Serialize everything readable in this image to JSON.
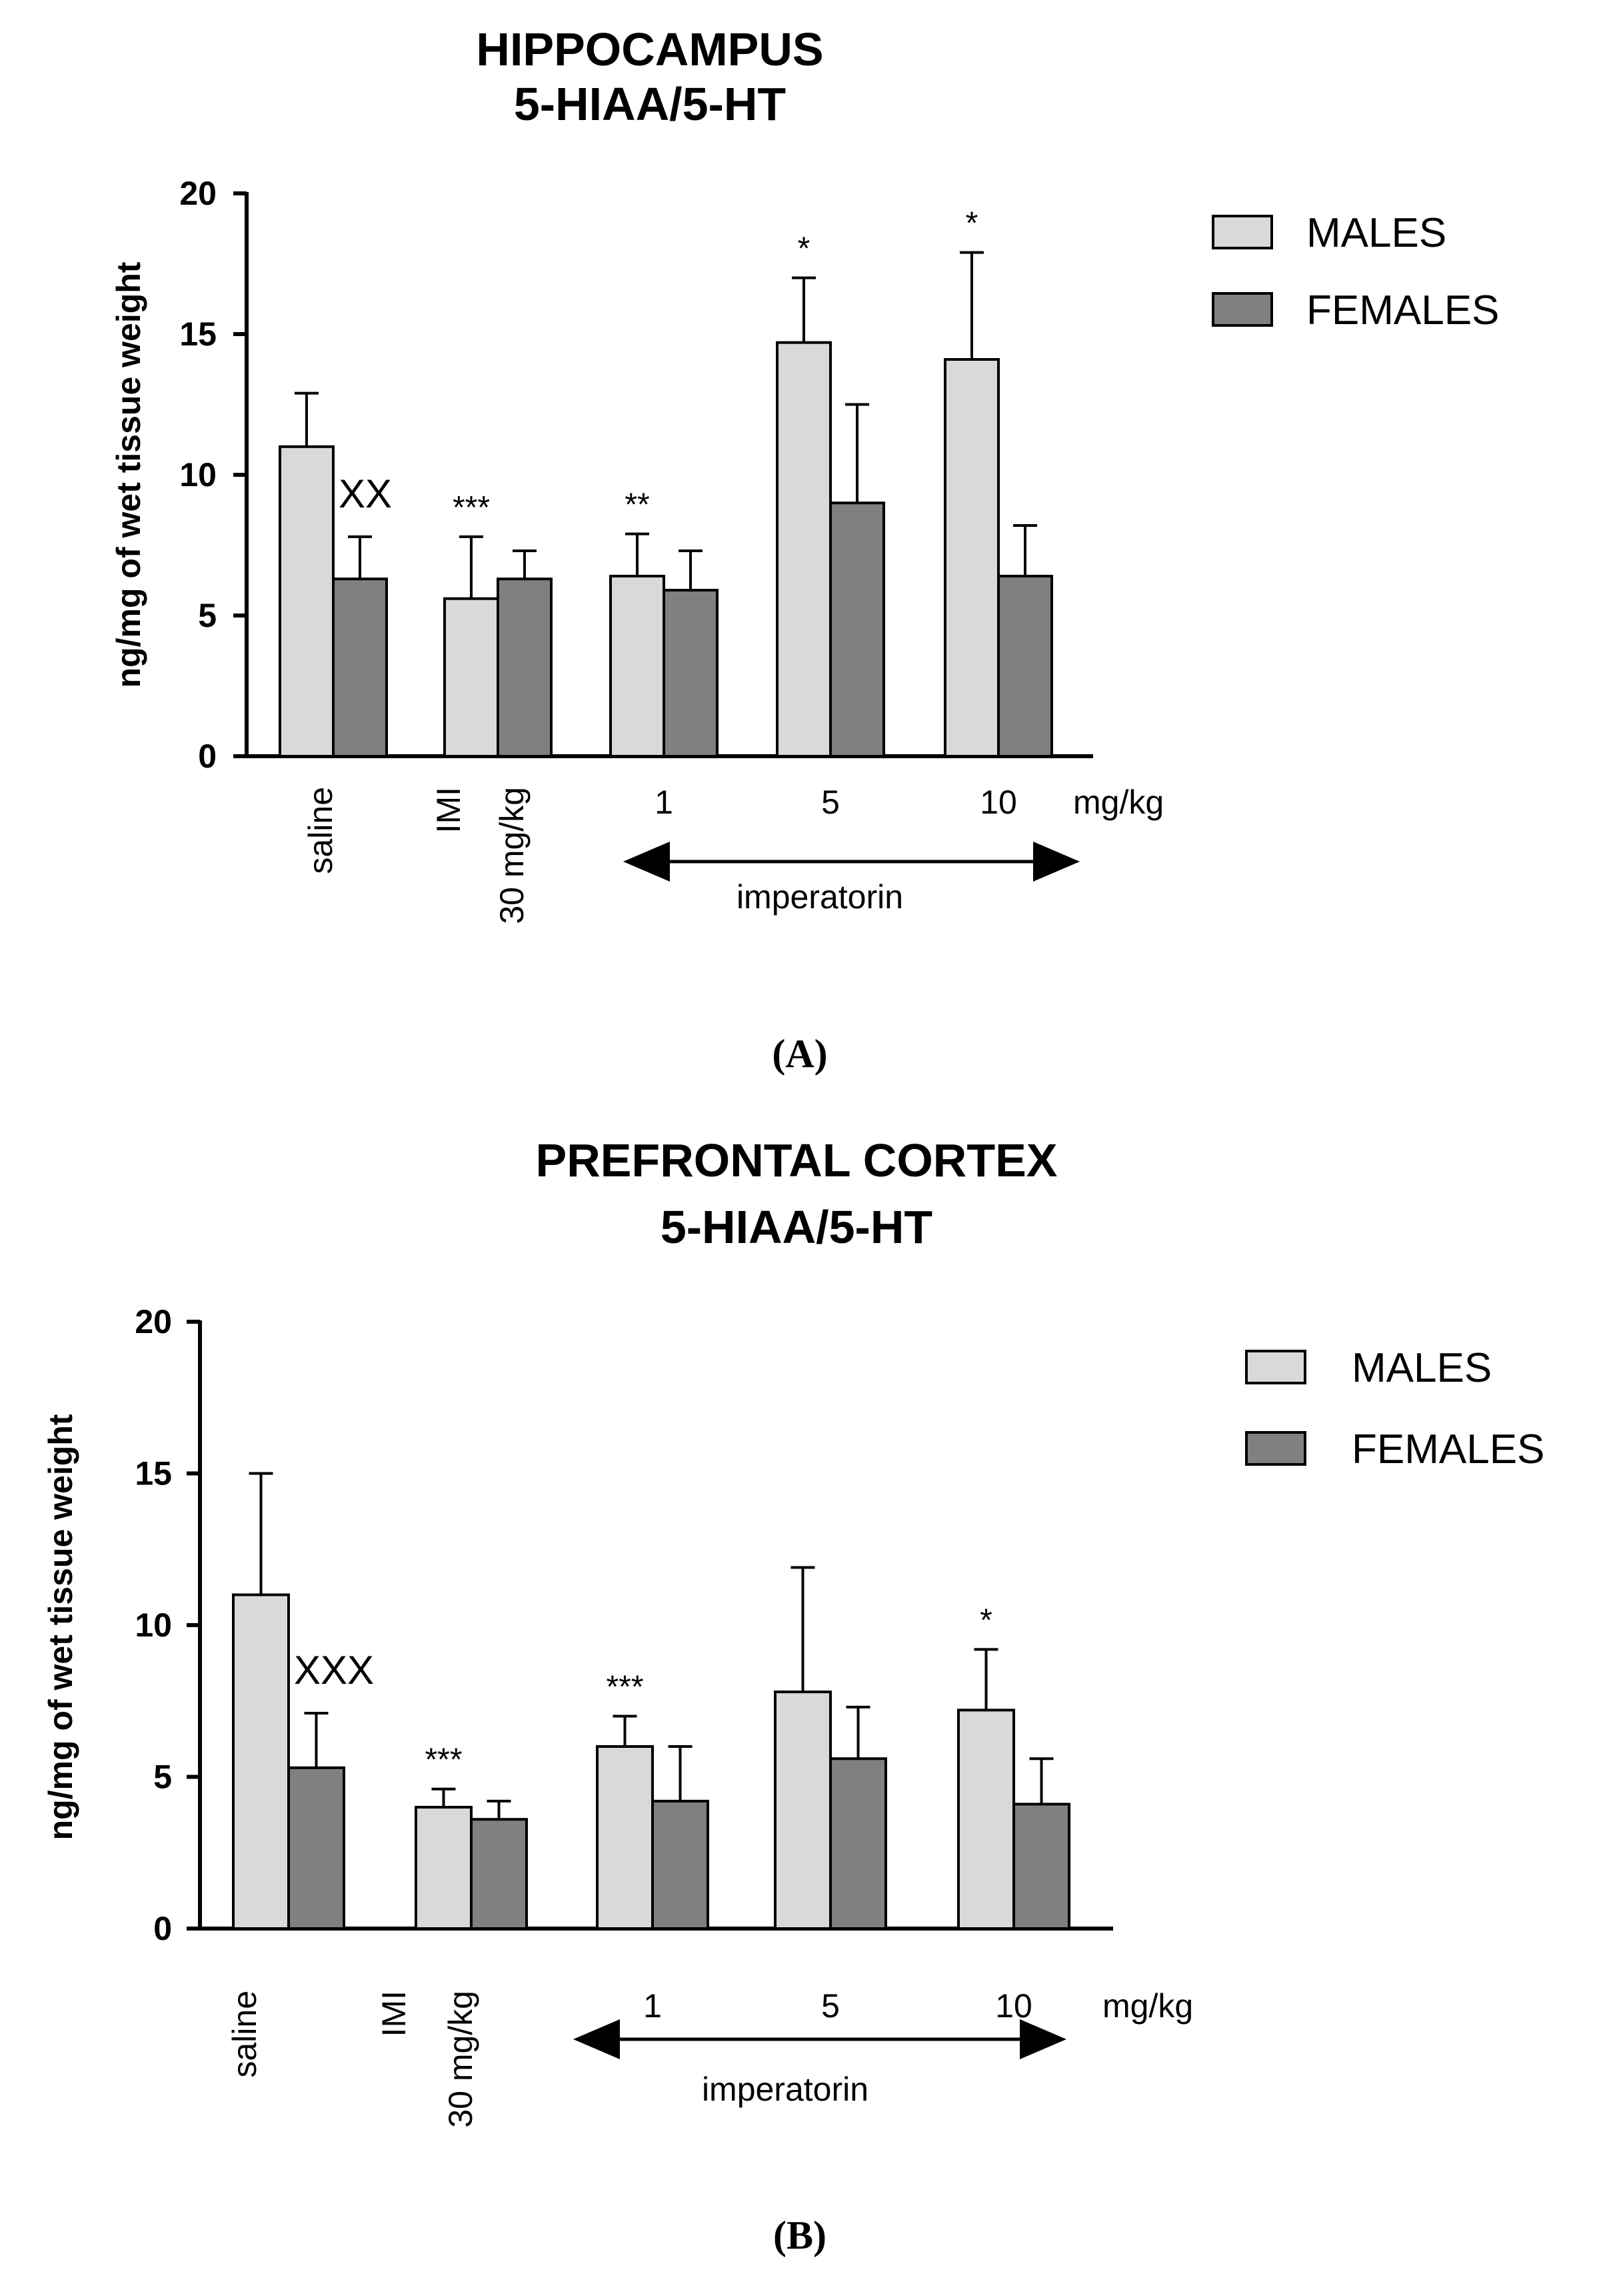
{
  "chart_data": [
    {
      "type": "bar",
      "panel_label": "(A)",
      "title": [
        "HIPPOCAMPUS",
        "5-HIAA/5-HT"
      ],
      "ylabel": "ng/mg of wet tissue weight",
      "ylim": [
        0,
        20
      ],
      "yticks": [
        "0",
        "5",
        "10",
        "15",
        "20"
      ],
      "categories": [
        "saline",
        "IMI 30 mg/kg",
        "1",
        "5",
        "10"
      ],
      "category_lines": [
        [
          "saline"
        ],
        [
          "IMI",
          "30 mg/kg"
        ],
        [
          "1"
        ],
        [
          "5"
        ],
        [
          "10"
        ]
      ],
      "x_unit": "mg/kg",
      "group_label": "imperatorin",
      "series": [
        {
          "name": "MALES",
          "color": "#d9d9d9",
          "values": [
            11.0,
            5.6,
            6.4,
            14.7,
            14.1
          ],
          "errors": [
            1.9,
            2.2,
            1.5,
            2.3,
            3.8
          ],
          "annotations": [
            "",
            "***",
            "**",
            "*",
            "*"
          ]
        },
        {
          "name": "FEMALES",
          "color": "#808080",
          "values": [
            6.3,
            6.3,
            5.9,
            9.0,
            6.4
          ],
          "errors": [
            1.5,
            1.0,
            1.4,
            3.5,
            1.8
          ],
          "annotations": [
            "XX",
            "",
            "",
            "",
            ""
          ]
        }
      ],
      "legend_position": "top-right"
    },
    {
      "type": "bar",
      "panel_label": "(B)",
      "title": [
        "PREFRONTAL CORTEX",
        "5-HIAA/5-HT"
      ],
      "ylabel": "ng/mg of wet tissue weight",
      "ylim": [
        0,
        20
      ],
      "yticks": [
        "0",
        "5",
        "10",
        "15",
        "20"
      ],
      "categories": [
        "saline",
        "IMI 30 mg/kg",
        "1",
        "5",
        "10"
      ],
      "category_lines": [
        [
          "saline"
        ],
        [
          "IMI",
          "30 mg/kg"
        ],
        [
          "1"
        ],
        [
          "5"
        ],
        [
          "10"
        ]
      ],
      "x_unit": "mg/kg",
      "group_label": "imperatorin",
      "series": [
        {
          "name": "MALES",
          "color": "#d9d9d9",
          "values": [
            11.0,
            4.0,
            6.0,
            7.8,
            7.2
          ],
          "errors": [
            4.0,
            0.6,
            1.0,
            4.1,
            2.0
          ],
          "annotations": [
            "",
            "***",
            "***",
            "",
            "*"
          ]
        },
        {
          "name": "FEMALES",
          "color": "#808080",
          "values": [
            5.3,
            3.6,
            4.2,
            5.6,
            4.1
          ],
          "errors": [
            1.8,
            0.6,
            1.8,
            1.7,
            1.5
          ],
          "annotations": [
            "XXX",
            "",
            "",
            "",
            ""
          ]
        }
      ],
      "legend_position": "top-right"
    }
  ]
}
